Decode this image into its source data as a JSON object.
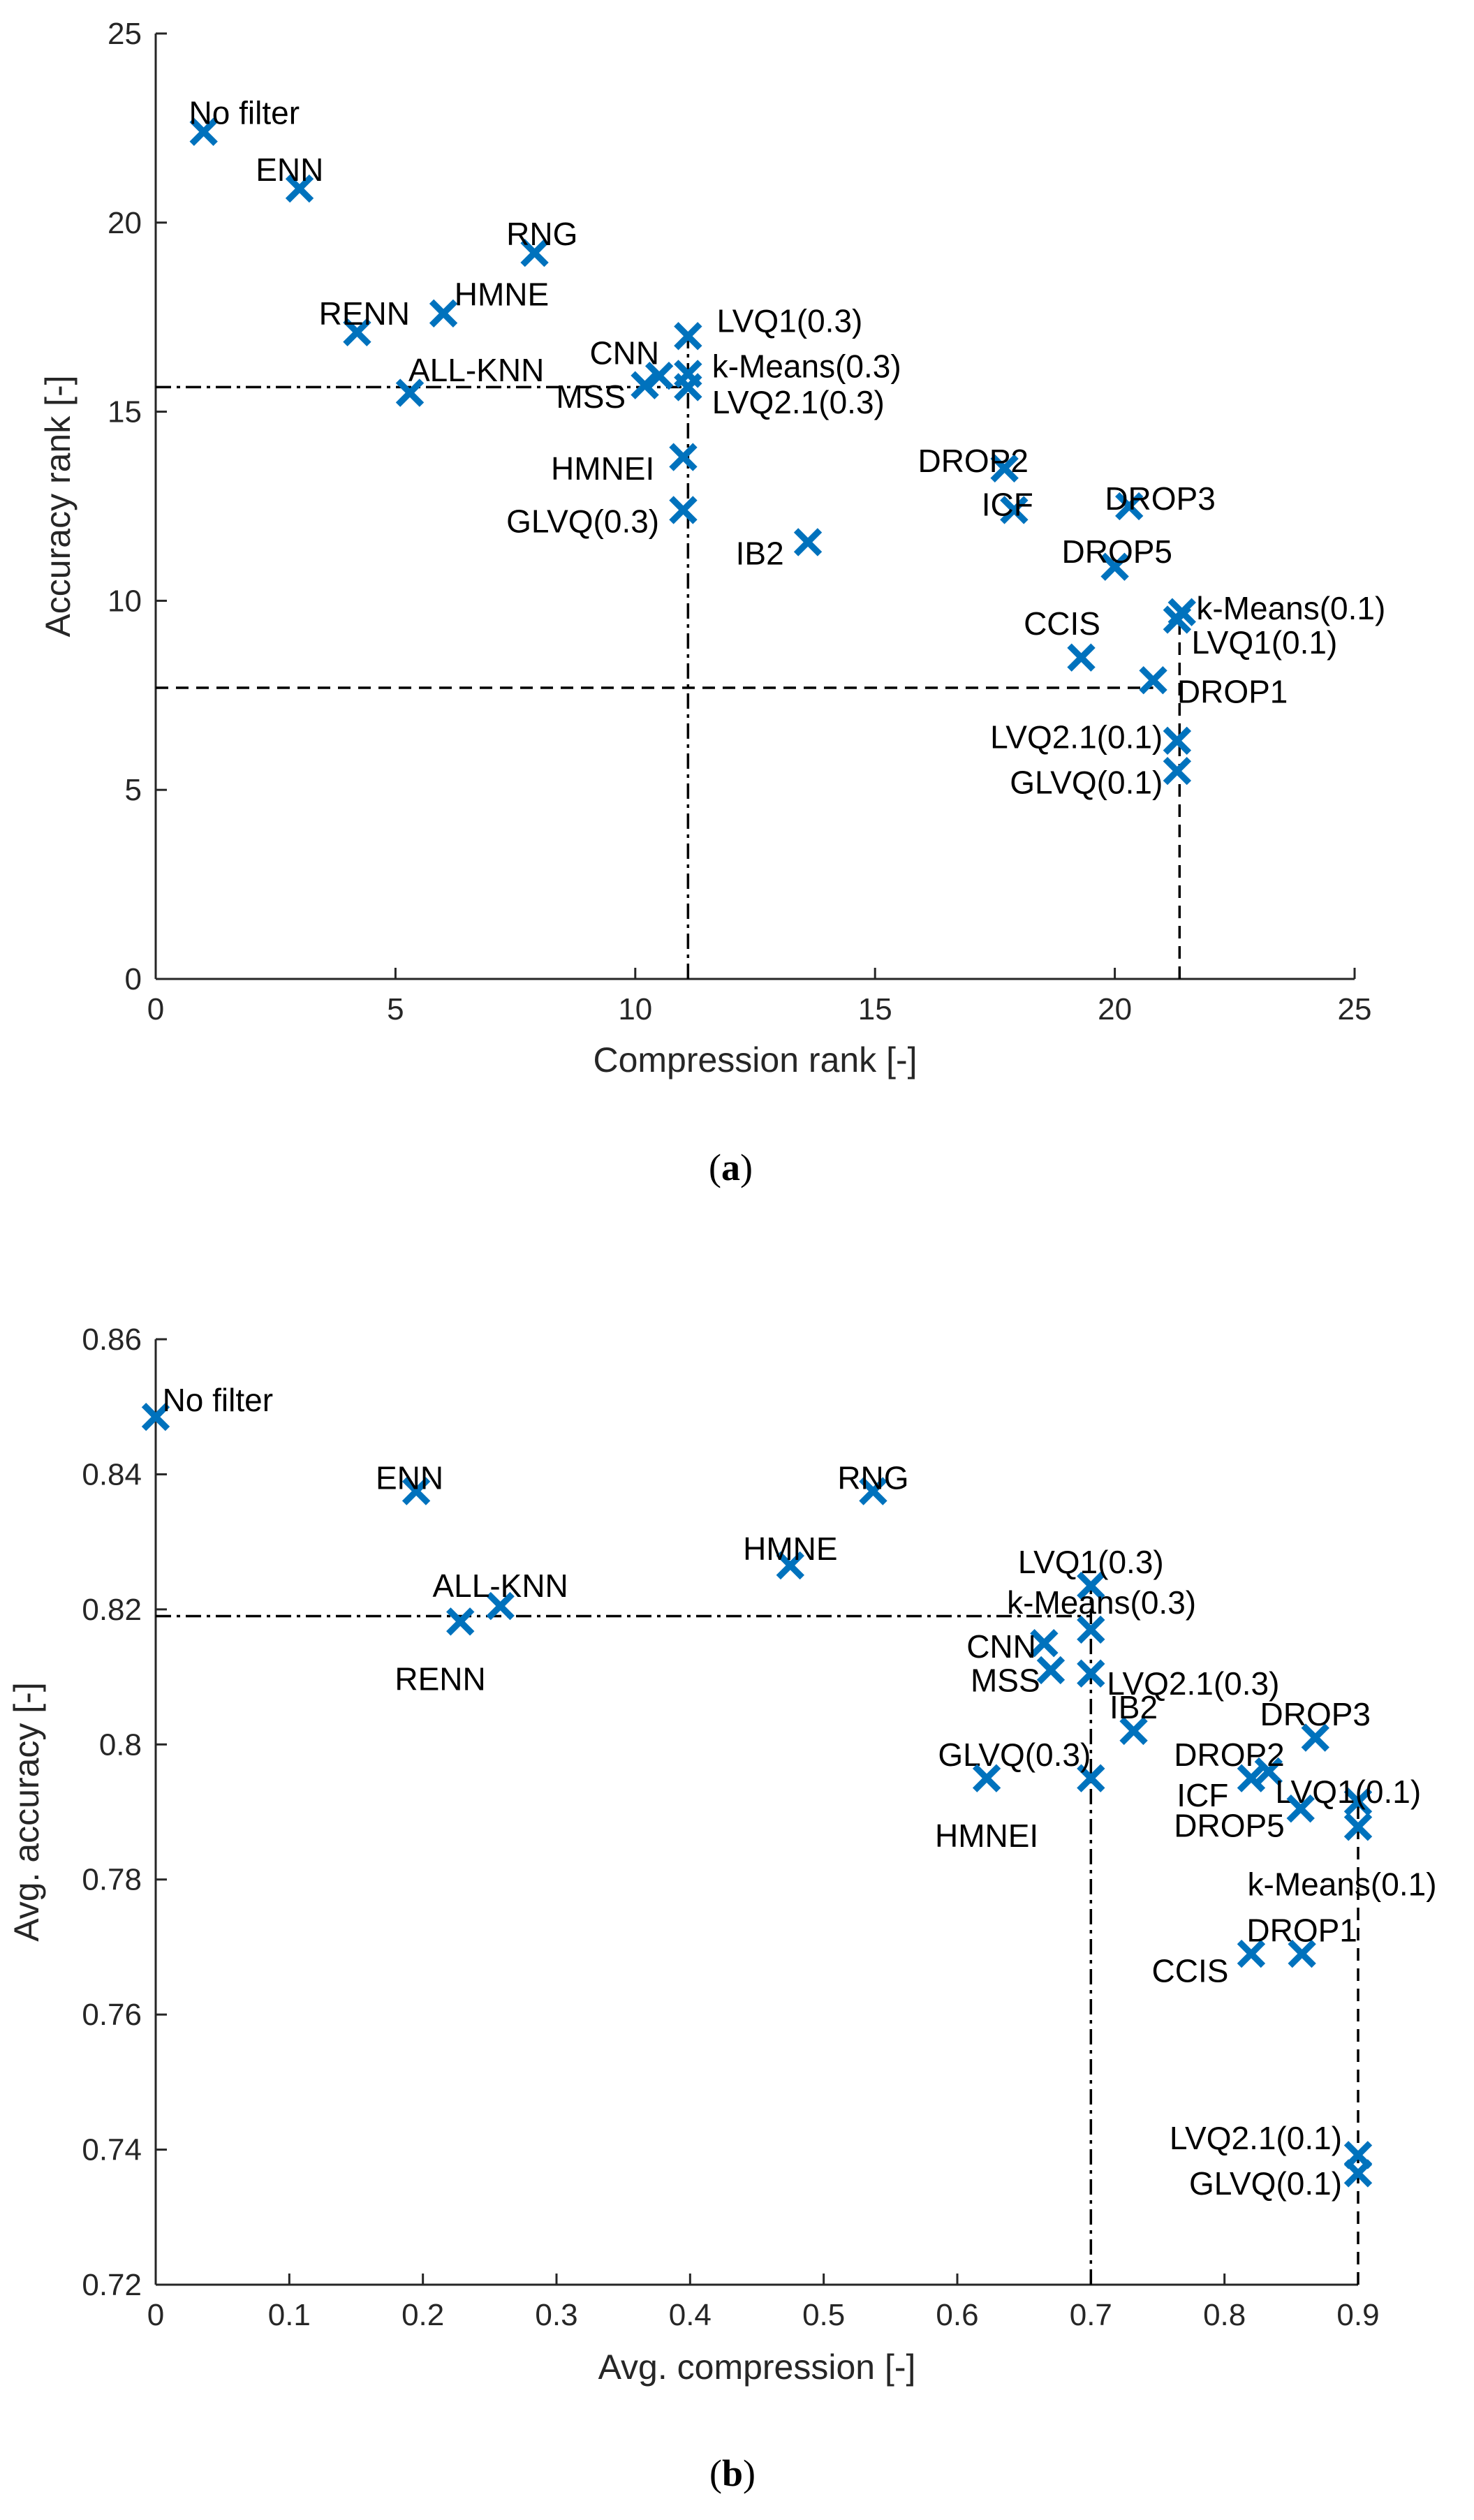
{
  "colors": {
    "marker": "#0072BD",
    "axis": "#262626",
    "reference_lines": "#000000"
  },
  "chart_data": [
    {
      "type": "scatter",
      "panel": "a",
      "caption": "(a)",
      "title": "",
      "xlabel": "Compression rank [-]",
      "ylabel": "Accuracy rank [-]",
      "xlim": [
        0,
        25
      ],
      "ylim": [
        0,
        25
      ],
      "xticks": [
        "0",
        "5",
        "10",
        "15",
        "20",
        "25"
      ],
      "yticks": [
        "0",
        "5",
        "10",
        "15",
        "20",
        "25"
      ],
      "grid": false,
      "reference_lines": [
        {
          "orientation": "vertical",
          "value": 11.1,
          "style": "dashdot"
        },
        {
          "orientation": "horizontal",
          "value": 15.65,
          "style": "dashdot"
        },
        {
          "orientation": "vertical",
          "value": 21.35,
          "style": "dashed"
        },
        {
          "orientation": "horizontal",
          "value": 7.7,
          "style": "dashed"
        }
      ],
      "points": [
        {
          "label": "No filter",
          "x": 1.0,
          "y": 22.4,
          "anchor": "end",
          "dx": 2.0,
          "dy": 0.5
        },
        {
          "label": "ENN",
          "x": 3.0,
          "y": 20.9,
          "anchor": "end",
          "dx": 0.5,
          "dy": 0.5
        },
        {
          "label": "RNG",
          "x": 7.9,
          "y": 19.2,
          "anchor": "end",
          "dx": 0.9,
          "dy": 0.5
        },
        {
          "label": "HMNE",
          "x": 6.0,
          "y": 17.6,
          "anchor": "end",
          "dx": 2.2,
          "dy": 0.5
        },
        {
          "label": "RENN",
          "x": 4.2,
          "y": 17.1,
          "anchor": "end",
          "dx": 1.1,
          "dy": 0.5
        },
        {
          "label": "ALL-KNN",
          "x": 5.3,
          "y": 15.5,
          "anchor": "end",
          "dx": 2.8,
          "dy": 0.6
        },
        {
          "label": "LVQ1(0.3)",
          "x": 11.1,
          "y": 17.0,
          "anchor": "start",
          "dx": 0.6,
          "dy": 0.4
        },
        {
          "label": "CNN",
          "x": 10.5,
          "y": 15.95,
          "anchor": "end",
          "dx": 0.0,
          "dy": 0.6
        },
        {
          "label": "k-Means(0.3)",
          "x": 11.1,
          "y": 16.0,
          "anchor": "start",
          "dx": 0.5,
          "dy": 0.2
        },
        {
          "label": "MSS",
          "x": 10.2,
          "y": 15.7,
          "anchor": "end",
          "dx": -0.4,
          "dy": -0.3
        },
        {
          "label": "LVQ2.1(0.3)",
          "x": 11.1,
          "y": 15.65,
          "anchor": "start",
          "dx": 0.5,
          "dy": -0.4
        },
        {
          "label": "HMNEI",
          "x": 11.0,
          "y": 13.8,
          "anchor": "end",
          "dx": -0.6,
          "dy": -0.3
        },
        {
          "label": "GLVQ(0.3)",
          "x": 11.0,
          "y": 12.4,
          "anchor": "end",
          "dx": -0.5,
          "dy": -0.3
        },
        {
          "label": "IB2",
          "x": 13.6,
          "y": 11.55,
          "anchor": "end",
          "dx": -0.5,
          "dy": -0.3
        },
        {
          "label": "DROP2",
          "x": 17.7,
          "y": 13.5,
          "anchor": "end",
          "dx": 0.5,
          "dy": 0.2
        },
        {
          "label": "ICF",
          "x": 17.9,
          "y": 12.4,
          "anchor": "end",
          "dx": 0.4,
          "dy": 0.15
        },
        {
          "label": "DROP3",
          "x": 20.3,
          "y": 12.5,
          "anchor": "end",
          "dx": 1.8,
          "dy": 0.2
        },
        {
          "label": "DROP5",
          "x": 20.0,
          "y": 10.9,
          "anchor": "end",
          "dx": 1.2,
          "dy": 0.4
        },
        {
          "label": "k-Means(0.1)",
          "x": 21.4,
          "y": 9.7,
          "anchor": "start",
          "dx": 0.3,
          "dy": 0.1
        },
        {
          "label": "LVQ1(0.1)",
          "x": 21.3,
          "y": 9.5,
          "anchor": "start",
          "dx": 0.3,
          "dy": -0.6
        },
        {
          "label": "CCIS",
          "x": 19.3,
          "y": 8.5,
          "anchor": "end",
          "dx": 0.4,
          "dy": 0.9
        },
        {
          "label": "DROP1",
          "x": 20.8,
          "y": 7.9,
          "anchor": "start",
          "dx": 0.5,
          "dy": -0.3
        },
        {
          "label": "LVQ2.1(0.1)",
          "x": 21.3,
          "y": 6.3,
          "anchor": "end",
          "dx": -0.3,
          "dy": 0.1
        },
        {
          "label": "GLVQ(0.1)",
          "x": 21.3,
          "y": 5.5,
          "anchor": "end",
          "dx": -0.3,
          "dy": -0.3
        }
      ]
    },
    {
      "type": "scatter",
      "panel": "b",
      "caption": "(b)",
      "title": "",
      "xlabel": "Avg. compression [-]",
      "ylabel": "Avg. accuracy [-]",
      "xlim": [
        0,
        0.9
      ],
      "ylim": [
        0.72,
        0.86
      ],
      "xticks": [
        "0",
        "0.1",
        "0.2",
        "0.3",
        "0.4",
        "0.5",
        "0.6",
        "0.7",
        "0.8",
        "0.9"
      ],
      "yticks": [
        "0.72",
        "0.74",
        "0.76",
        "0.78",
        "0.8",
        "0.82",
        "0.84",
        "0.86"
      ],
      "grid": false,
      "reference_lines": [
        {
          "orientation": "vertical",
          "value": 0.7,
          "style": "dashdot"
        },
        {
          "orientation": "horizontal",
          "value": 0.819,
          "style": "dashdot"
        },
        {
          "orientation": "vertical",
          "value": 0.9,
          "style": "dashed"
        },
        {
          "orientation": "horizontal",
          "value": 0.7825,
          "style": "dashed"
        }
      ],
      "points": [
        {
          "label": "No filter",
          "x": 0.0,
          "y": 0.8485,
          "anchor": "start",
          "dx": 0.005,
          "dy": 0.0025
        },
        {
          "label": "ENN",
          "x": 0.195,
          "y": 0.8375,
          "anchor": "middle",
          "dx": -0.005,
          "dy": 0.002
        },
        {
          "label": "RNG",
          "x": 0.537,
          "y": 0.8375,
          "anchor": "middle",
          "dx": 0.0,
          "dy": 0.002
        },
        {
          "label": "HMNE",
          "x": 0.475,
          "y": 0.8265,
          "anchor": "middle",
          "dx": 0.0,
          "dy": 0.0025
        },
        {
          "label": "ALL-KNN",
          "x": 0.258,
          "y": 0.8205,
          "anchor": "middle",
          "dx": 0.0,
          "dy": 0.003
        },
        {
          "label": "RENN",
          "x": 0.228,
          "y": 0.8182,
          "anchor": "middle",
          "dx": -0.015,
          "dy": -0.0085
        },
        {
          "label": "LVQ1(0.3)",
          "x": 0.7,
          "y": 0.8235,
          "anchor": "middle",
          "dx": 0.0,
          "dy": 0.0035
        },
        {
          "label": "k-Means(0.3)",
          "x": 0.7,
          "y": 0.817,
          "anchor": "middle",
          "dx": 0.008,
          "dy": 0.004
        },
        {
          "label": "CNN",
          "x": 0.665,
          "y": 0.815,
          "anchor": "end",
          "dx": -0.006,
          "dy": -0.0005
        },
        {
          "label": "MSS",
          "x": 0.67,
          "y": 0.811,
          "anchor": "end",
          "dx": -0.008,
          "dy": -0.0015
        },
        {
          "label": "LVQ2.1(0.3)",
          "x": 0.7,
          "y": 0.8105,
          "anchor": "start",
          "dx": 0.012,
          "dy": -0.0015
        },
        {
          "label": "IB2",
          "x": 0.732,
          "y": 0.802,
          "anchor": "middle",
          "dx": 0.0,
          "dy": 0.0035
        },
        {
          "label": "GLVQ(0.3)",
          "x": 0.7,
          "y": 0.795,
          "anchor": "end",
          "dx": 0.0,
          "dy": 0.0035
        },
        {
          "label": "HMNEI",
          "x": 0.622,
          "y": 0.795,
          "anchor": "middle",
          "dx": 0.0,
          "dy": -0.0085
        },
        {
          "label": "DROP3",
          "x": 0.868,
          "y": 0.801,
          "anchor": "middle",
          "dx": 0.0,
          "dy": 0.0035
        },
        {
          "label": "DROP2",
          "x": 0.833,
          "y": 0.796,
          "anchor": "end",
          "dx": 0.012,
          "dy": 0.0025
        },
        {
          "label": "ICF",
          "x": 0.82,
          "y": 0.795,
          "anchor": "end",
          "dx": -0.017,
          "dy": -0.0025
        },
        {
          "label": "LVQ1(0.1)",
          "x": 0.9,
          "y": 0.7915,
          "anchor": "start",
          "dx": -0.062,
          "dy": 0.0015
        },
        {
          "label": "DROP5",
          "x": 0.857,
          "y": 0.7905,
          "anchor": "end",
          "dx": -0.012,
          "dy": -0.0025
        },
        {
          "label": "k-Means(0.1)",
          "x": 0.9,
          "y": 0.7878,
          "anchor": "middle",
          "dx": -0.012,
          "dy": -0.0085
        },
        {
          "label": "CCIS",
          "x": 0.82,
          "y": 0.769,
          "anchor": "end",
          "dx": -0.017,
          "dy": -0.0025
        },
        {
          "label": "DROP1",
          "x": 0.858,
          "y": 0.769,
          "anchor": "middle",
          "dx": 0.0,
          "dy": 0.0035
        },
        {
          "label": "LVQ2.1(0.1)",
          "x": 0.9,
          "y": 0.7392,
          "anchor": "end",
          "dx": -0.012,
          "dy": 0.0025
        },
        {
          "label": "GLVQ(0.1)",
          "x": 0.9,
          "y": 0.7365,
          "anchor": "end",
          "dx": -0.012,
          "dy": -0.0015
        }
      ]
    }
  ]
}
